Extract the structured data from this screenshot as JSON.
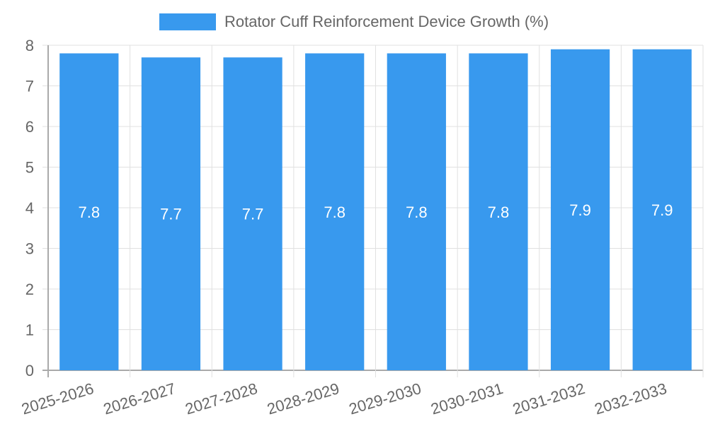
{
  "chart_data": {
    "type": "bar",
    "title": "",
    "legend": [
      "Rotator Cuff Reinforcement Device Growth (%)"
    ],
    "legend_position": "top",
    "categories": [
      "2025-2026",
      "2026-2027",
      "2027-2028",
      "2028-2029",
      "2029-2030",
      "2030-2031",
      "2031-2032",
      "2032-2033"
    ],
    "series": [
      {
        "name": "Rotator Cuff Reinforcement Device Growth (%)",
        "values": [
          7.8,
          7.7,
          7.7,
          7.8,
          7.8,
          7.8,
          7.9,
          7.9
        ],
        "color": "#3899ee"
      }
    ],
    "xlabel": "",
    "ylabel": "",
    "ylim": [
      0,
      8
    ],
    "yticks": [
      0,
      1,
      2,
      3,
      4,
      5,
      6,
      7,
      8
    ],
    "grid": true,
    "data_labels": true
  },
  "legend": {
    "label": "Rotator Cuff Reinforcement Device Growth (%)"
  }
}
